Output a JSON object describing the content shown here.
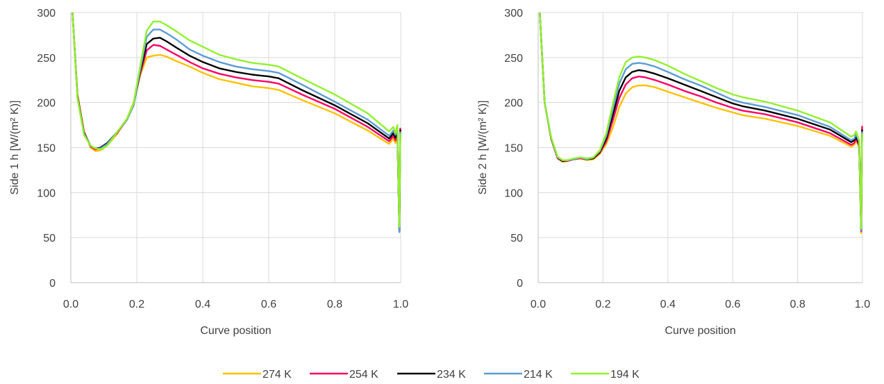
{
  "chart_data": [
    {
      "type": "line",
      "title": "",
      "xlabel": "Curve position",
      "ylabel": "Side 1 h [W/(m² K)]",
      "xlim": [
        0.0,
        1.0
      ],
      "ylim": [
        0,
        300
      ],
      "xticks": [
        "0.0",
        "0.2",
        "0.4",
        "0.6",
        "0.8",
        "1.0"
      ],
      "yticks": [
        "0",
        "50",
        "100",
        "150",
        "200",
        "250",
        "300"
      ],
      "grid": true,
      "series": [
        {
          "name": "274 K",
          "color": "#FFC000",
          "x": [
            0.005,
            0.02,
            0.04,
            0.06,
            0.075,
            0.09,
            0.11,
            0.14,
            0.17,
            0.19,
            0.21,
            0.23,
            0.25,
            0.27,
            0.29,
            0.32,
            0.36,
            0.4,
            0.45,
            0.5,
            0.55,
            0.6,
            0.63,
            0.7,
            0.8,
            0.9,
            0.965,
            0.978,
            0.984,
            0.99,
            0.996,
            0.999
          ],
          "y": [
            300,
            210,
            168,
            150,
            146,
            147,
            152,
            165,
            182,
            200,
            230,
            250,
            252,
            253,
            251,
            246,
            240,
            233,
            226,
            222,
            218,
            216,
            214,
            203,
            188,
            169,
            154,
            160,
            155,
            163,
            60,
            170
          ]
        },
        {
          "name": "254 K",
          "color": "#FF0066",
          "x": [
            0.005,
            0.02,
            0.04,
            0.06,
            0.075,
            0.09,
            0.11,
            0.14,
            0.17,
            0.19,
            0.21,
            0.23,
            0.25,
            0.27,
            0.29,
            0.32,
            0.36,
            0.4,
            0.45,
            0.5,
            0.55,
            0.6,
            0.63,
            0.7,
            0.8,
            0.9,
            0.965,
            0.978,
            0.984,
            0.99,
            0.996,
            0.999
          ],
          "y": [
            300,
            208,
            167,
            151,
            148,
            149,
            154,
            166,
            181,
            198,
            232,
            258,
            264,
            263,
            259,
            253,
            245,
            238,
            232,
            228,
            225,
            223,
            221,
            209,
            193,
            173,
            157,
            163,
            158,
            167,
            58,
            172
          ]
        },
        {
          "name": "234 K",
          "color": "#000000",
          "x": [
            0.005,
            0.02,
            0.04,
            0.06,
            0.075,
            0.09,
            0.11,
            0.14,
            0.17,
            0.19,
            0.21,
            0.23,
            0.25,
            0.27,
            0.29,
            0.32,
            0.36,
            0.4,
            0.45,
            0.5,
            0.55,
            0.6,
            0.63,
            0.7,
            0.8,
            0.9,
            0.965,
            0.978,
            0.984,
            0.99,
            0.996,
            0.999
          ],
          "y": [
            300,
            207,
            166,
            152,
            149,
            150,
            155,
            167,
            181,
            197,
            234,
            265,
            271,
            272,
            268,
            261,
            252,
            245,
            238,
            234,
            231,
            229,
            227,
            214,
            197,
            177,
            160,
            166,
            161,
            170,
            57,
            170
          ]
        },
        {
          "name": "214 K",
          "color": "#5B9BD5",
          "x": [
            0.005,
            0.02,
            0.04,
            0.06,
            0.075,
            0.09,
            0.11,
            0.14,
            0.17,
            0.19,
            0.21,
            0.23,
            0.25,
            0.27,
            0.29,
            0.32,
            0.36,
            0.4,
            0.45,
            0.5,
            0.55,
            0.6,
            0.63,
            0.7,
            0.8,
            0.9,
            0.965,
            0.978,
            0.984,
            0.99,
            0.996,
            0.999
          ],
          "y": [
            300,
            206,
            165,
            152,
            149,
            149,
            154,
            167,
            181,
            197,
            236,
            273,
            281,
            281,
            277,
            270,
            259,
            252,
            245,
            240,
            237,
            235,
            233,
            220,
            201,
            181,
            163,
            169,
            164,
            173,
            56,
            168
          ]
        },
        {
          "name": "194 K",
          "color": "#92F02E",
          "x": [
            0.005,
            0.02,
            0.04,
            0.06,
            0.075,
            0.09,
            0.11,
            0.14,
            0.17,
            0.19,
            0.21,
            0.23,
            0.25,
            0.27,
            0.29,
            0.32,
            0.36,
            0.4,
            0.45,
            0.5,
            0.55,
            0.6,
            0.63,
            0.7,
            0.8,
            0.9,
            0.965,
            0.978,
            0.984,
            0.99,
            0.996,
            0.999
          ],
          "y": [
            300,
            205,
            164,
            152,
            149,
            148,
            152,
            167,
            182,
            199,
            240,
            280,
            290,
            290,
            286,
            279,
            269,
            262,
            253,
            248,
            244,
            242,
            240,
            227,
            209,
            188,
            168,
            173,
            166,
            175,
            62,
            166
          ]
        }
      ]
    },
    {
      "type": "line",
      "title": "",
      "xlabel": "Curve position",
      "ylabel": "Side 2 h [W/(m² K)]",
      "xlim": [
        0.0,
        1.0
      ],
      "ylim": [
        0,
        300
      ],
      "xticks": [
        "0.0",
        "0.2",
        "0.4",
        "0.6",
        "0.8",
        "1.0"
      ],
      "yticks": [
        "0",
        "50",
        "100",
        "150",
        "200",
        "250",
        "300"
      ],
      "grid": true,
      "series": [
        {
          "name": "274 K",
          "color": "#FFC000",
          "x": [
            0.005,
            0.02,
            0.04,
            0.06,
            0.075,
            0.09,
            0.11,
            0.13,
            0.15,
            0.17,
            0.19,
            0.21,
            0.23,
            0.25,
            0.27,
            0.29,
            0.31,
            0.33,
            0.36,
            0.4,
            0.45,
            0.5,
            0.55,
            0.6,
            0.63,
            0.7,
            0.8,
            0.9,
            0.965,
            0.975,
            0.98,
            0.99,
            0.996,
            0.999
          ],
          "y": [
            300,
            200,
            160,
            138,
            134,
            135,
            137,
            138,
            136,
            137,
            143,
            154,
            172,
            195,
            210,
            217,
            219,
            219,
            217,
            212,
            206,
            200,
            194,
            189,
            186,
            182,
            174,
            163,
            151,
            153,
            158,
            150,
            55,
            172
          ]
        },
        {
          "name": "254 K",
          "color": "#FF0066",
          "x": [
            0.005,
            0.02,
            0.04,
            0.06,
            0.075,
            0.09,
            0.11,
            0.13,
            0.15,
            0.17,
            0.19,
            0.21,
            0.23,
            0.25,
            0.27,
            0.29,
            0.31,
            0.33,
            0.36,
            0.4,
            0.45,
            0.5,
            0.55,
            0.6,
            0.63,
            0.7,
            0.8,
            0.9,
            0.965,
            0.975,
            0.98,
            0.99,
            0.996,
            0.999
          ],
          "y": [
            300,
            200,
            160,
            138,
            135,
            135,
            137,
            138,
            137,
            138,
            144,
            157,
            180,
            205,
            220,
            227,
            229,
            228,
            225,
            220,
            213,
            207,
            200,
            194,
            191,
            187,
            178,
            166,
            153,
            155,
            160,
            152,
            57,
            174
          ]
        },
        {
          "name": "234 K",
          "color": "#000000",
          "x": [
            0.005,
            0.02,
            0.04,
            0.06,
            0.075,
            0.09,
            0.11,
            0.13,
            0.15,
            0.17,
            0.19,
            0.21,
            0.23,
            0.25,
            0.27,
            0.29,
            0.31,
            0.33,
            0.36,
            0.4,
            0.45,
            0.5,
            0.55,
            0.6,
            0.63,
            0.7,
            0.8,
            0.9,
            0.965,
            0.975,
            0.98,
            0.99,
            0.996,
            0.999
          ],
          "y": [
            300,
            200,
            160,
            139,
            135,
            136,
            137,
            139,
            137,
            138,
            145,
            160,
            186,
            213,
            228,
            234,
            236,
            235,
            232,
            227,
            220,
            213,
            206,
            199,
            196,
            191,
            182,
            170,
            156,
            158,
            162,
            154,
            58,
            170
          ]
        },
        {
          "name": "214 K",
          "color": "#5B9BD5",
          "x": [
            0.005,
            0.02,
            0.04,
            0.06,
            0.075,
            0.09,
            0.11,
            0.13,
            0.15,
            0.17,
            0.19,
            0.21,
            0.23,
            0.25,
            0.27,
            0.29,
            0.31,
            0.33,
            0.36,
            0.4,
            0.45,
            0.5,
            0.55,
            0.6,
            0.63,
            0.7,
            0.8,
            0.9,
            0.965,
            0.975,
            0.98,
            0.99,
            0.996,
            0.999
          ],
          "y": [
            300,
            200,
            161,
            139,
            136,
            136,
            137,
            139,
            137,
            139,
            146,
            163,
            192,
            221,
            237,
            243,
            244,
            243,
            240,
            234,
            226,
            219,
            211,
            203,
            200,
            195,
            186,
            173,
            158,
            160,
            165,
            156,
            58,
            168
          ]
        },
        {
          "name": "194 K",
          "color": "#92F02E",
          "x": [
            0.005,
            0.02,
            0.04,
            0.06,
            0.075,
            0.09,
            0.11,
            0.13,
            0.15,
            0.17,
            0.19,
            0.21,
            0.23,
            0.25,
            0.27,
            0.29,
            0.31,
            0.33,
            0.36,
            0.4,
            0.45,
            0.5,
            0.55,
            0.6,
            0.63,
            0.7,
            0.8,
            0.9,
            0.965,
            0.975,
            0.98,
            0.99,
            0.996,
            0.999
          ],
          "y": [
            300,
            200,
            161,
            140,
            136,
            136,
            138,
            139,
            138,
            139,
            147,
            166,
            198,
            228,
            245,
            250,
            251,
            250,
            247,
            241,
            232,
            224,
            216,
            209,
            206,
            201,
            191,
            178,
            162,
            164,
            168,
            158,
            60,
            166
          ]
        }
      ]
    }
  ],
  "legend": [
    {
      "label": "274 K",
      "color": "#FFC000"
    },
    {
      "label": "254 K",
      "color": "#FF0066"
    },
    {
      "label": "234 K",
      "color": "#000000"
    },
    {
      "label": "214 K",
      "color": "#5B9BD5"
    },
    {
      "label": "194 K",
      "color": "#92F02E"
    }
  ]
}
